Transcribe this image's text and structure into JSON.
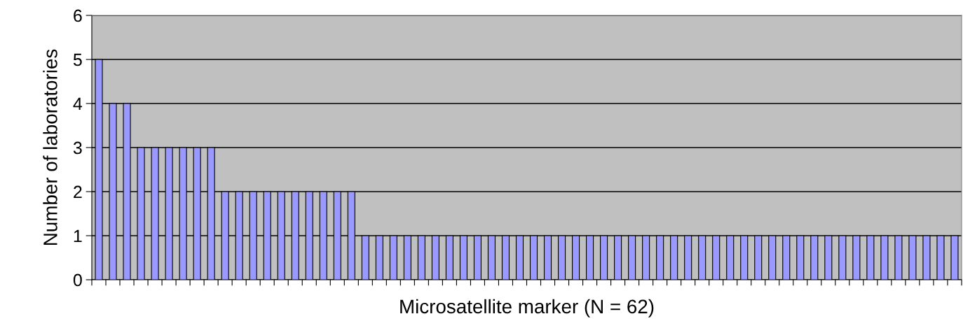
{
  "chart_data": {
    "type": "bar",
    "xlabel": "Microsatellite marker (N = 62)",
    "ylabel": "Number of laboratories",
    "categories": [
      null,
      null,
      null,
      null,
      null,
      null,
      null,
      null,
      null,
      null,
      null,
      null,
      null,
      null,
      null,
      null,
      null,
      null,
      null,
      null,
      null,
      null,
      null,
      null,
      null,
      null,
      null,
      null,
      null,
      null,
      null,
      null,
      null,
      null,
      null,
      null,
      null,
      null,
      null,
      null,
      null,
      null,
      null,
      null,
      null,
      null,
      null,
      null,
      null,
      null,
      null,
      null,
      null,
      null,
      null,
      null,
      null,
      null,
      null,
      null,
      null,
      null
    ],
    "values": [
      5,
      4,
      4,
      3,
      3,
      3,
      3,
      3,
      3,
      2,
      2,
      2,
      2,
      2,
      2,
      2,
      2,
      2,
      2,
      1,
      1,
      1,
      1,
      1,
      1,
      1,
      1,
      1,
      1,
      1,
      1,
      1,
      1,
      1,
      1,
      1,
      1,
      1,
      1,
      1,
      1,
      1,
      1,
      1,
      1,
      1,
      1,
      1,
      1,
      1,
      1,
      1,
      1,
      1,
      1,
      1,
      1,
      1,
      1,
      1,
      1,
      1
    ],
    "color": "#9999ff",
    "ylim": [
      0,
      6
    ],
    "yticks": [
      0,
      1,
      2,
      3,
      4,
      5,
      6
    ],
    "grid": "y",
    "tick_labels": "y"
  }
}
